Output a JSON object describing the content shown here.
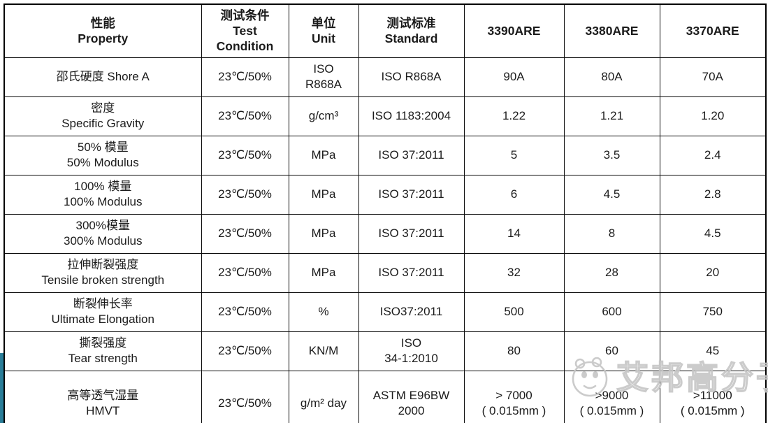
{
  "table": {
    "headers": [
      {
        "lines": [
          "性能",
          "Property"
        ]
      },
      {
        "lines": [
          "测试条件",
          "Test",
          "Condition"
        ]
      },
      {
        "lines": [
          "单位",
          "Unit"
        ]
      },
      {
        "lines": [
          "测试标准",
          "Standard"
        ]
      },
      {
        "lines": [
          "3390ARE"
        ]
      },
      {
        "lines": [
          "3380ARE"
        ]
      },
      {
        "lines": [
          "3370ARE"
        ]
      }
    ],
    "rows": [
      {
        "property": [
          "邵氏硬度 Shore A"
        ],
        "condition": [
          "23℃/50%"
        ],
        "unit": [
          "ISO",
          "R868A"
        ],
        "standard": [
          "ISO R868A"
        ],
        "values": [
          [
            "90A"
          ],
          [
            "80A"
          ],
          [
            "70A"
          ]
        ]
      },
      {
        "property": [
          "密度",
          "Specific  Gravity"
        ],
        "condition": [
          "23℃/50%"
        ],
        "unit": [
          "g/cm³"
        ],
        "standard": [
          "ISO 1183:2004"
        ],
        "values": [
          [
            "1.22"
          ],
          [
            "1.21"
          ],
          [
            "1.20"
          ]
        ]
      },
      {
        "property": [
          "50% 模量",
          "50% Modulus"
        ],
        "condition": [
          "23℃/50%"
        ],
        "unit": [
          "MPa"
        ],
        "standard": [
          "ISO 37:2011"
        ],
        "values": [
          [
            "5"
          ],
          [
            "3.5"
          ],
          [
            "2.4"
          ]
        ]
      },
      {
        "property": [
          "100% 模量",
          "100% Modulus"
        ],
        "condition": [
          "23℃/50%"
        ],
        "unit": [
          "MPa"
        ],
        "standard": [
          "ISO 37:2011"
        ],
        "values": [
          [
            "6"
          ],
          [
            "4.5"
          ],
          [
            "2.8"
          ]
        ]
      },
      {
        "property": [
          "300%模量",
          "300% Modulus"
        ],
        "condition": [
          "23℃/50%"
        ],
        "unit": [
          "MPa"
        ],
        "standard": [
          "ISO 37:2011"
        ],
        "values": [
          [
            "14"
          ],
          [
            "8"
          ],
          [
            "4.5"
          ]
        ]
      },
      {
        "property": [
          "拉伸断裂强度",
          "Tensile broken strength"
        ],
        "condition": [
          "23℃/50%"
        ],
        "unit": [
          "MPa"
        ],
        "standard": [
          "ISO 37:2011"
        ],
        "values": [
          [
            "32"
          ],
          [
            "28"
          ],
          [
            "20"
          ]
        ]
      },
      {
        "property": [
          "断裂伸长率",
          "Ultimate Elongation"
        ],
        "condition": [
          "23℃/50%"
        ],
        "unit": [
          "%"
        ],
        "standard": [
          "ISO37:2011"
        ],
        "values": [
          [
            "500"
          ],
          [
            "600"
          ],
          [
            "750"
          ]
        ]
      },
      {
        "property": [
          "撕裂强度",
          "Tear strength"
        ],
        "condition": [
          "23℃/50%"
        ],
        "unit": [
          "KN/M"
        ],
        "standard": [
          "ISO",
          "34-1:2010"
        ],
        "values": [
          [
            "80"
          ],
          [
            "60"
          ],
          [
            "45"
          ]
        ]
      },
      {
        "property": [
          "高等透气湿量",
          "HMVT"
        ],
        "condition": [
          "23℃/50%"
        ],
        "unit": [
          "g/m² day"
        ],
        "standard": [
          "ASTM E96BW",
          "2000"
        ],
        "values": [
          [
            "> 7000",
            "( 0.015mm )"
          ],
          [
            ">9000",
            "( 0.015mm )"
          ],
          [
            ">11000",
            "( 0.015mm )"
          ]
        ]
      }
    ]
  },
  "watermark": {
    "text": "艾邦高分子",
    "icon": "panda-face-icon",
    "color": "#c6c6c6"
  },
  "accent_bar": {
    "color": "#2a7e99"
  }
}
